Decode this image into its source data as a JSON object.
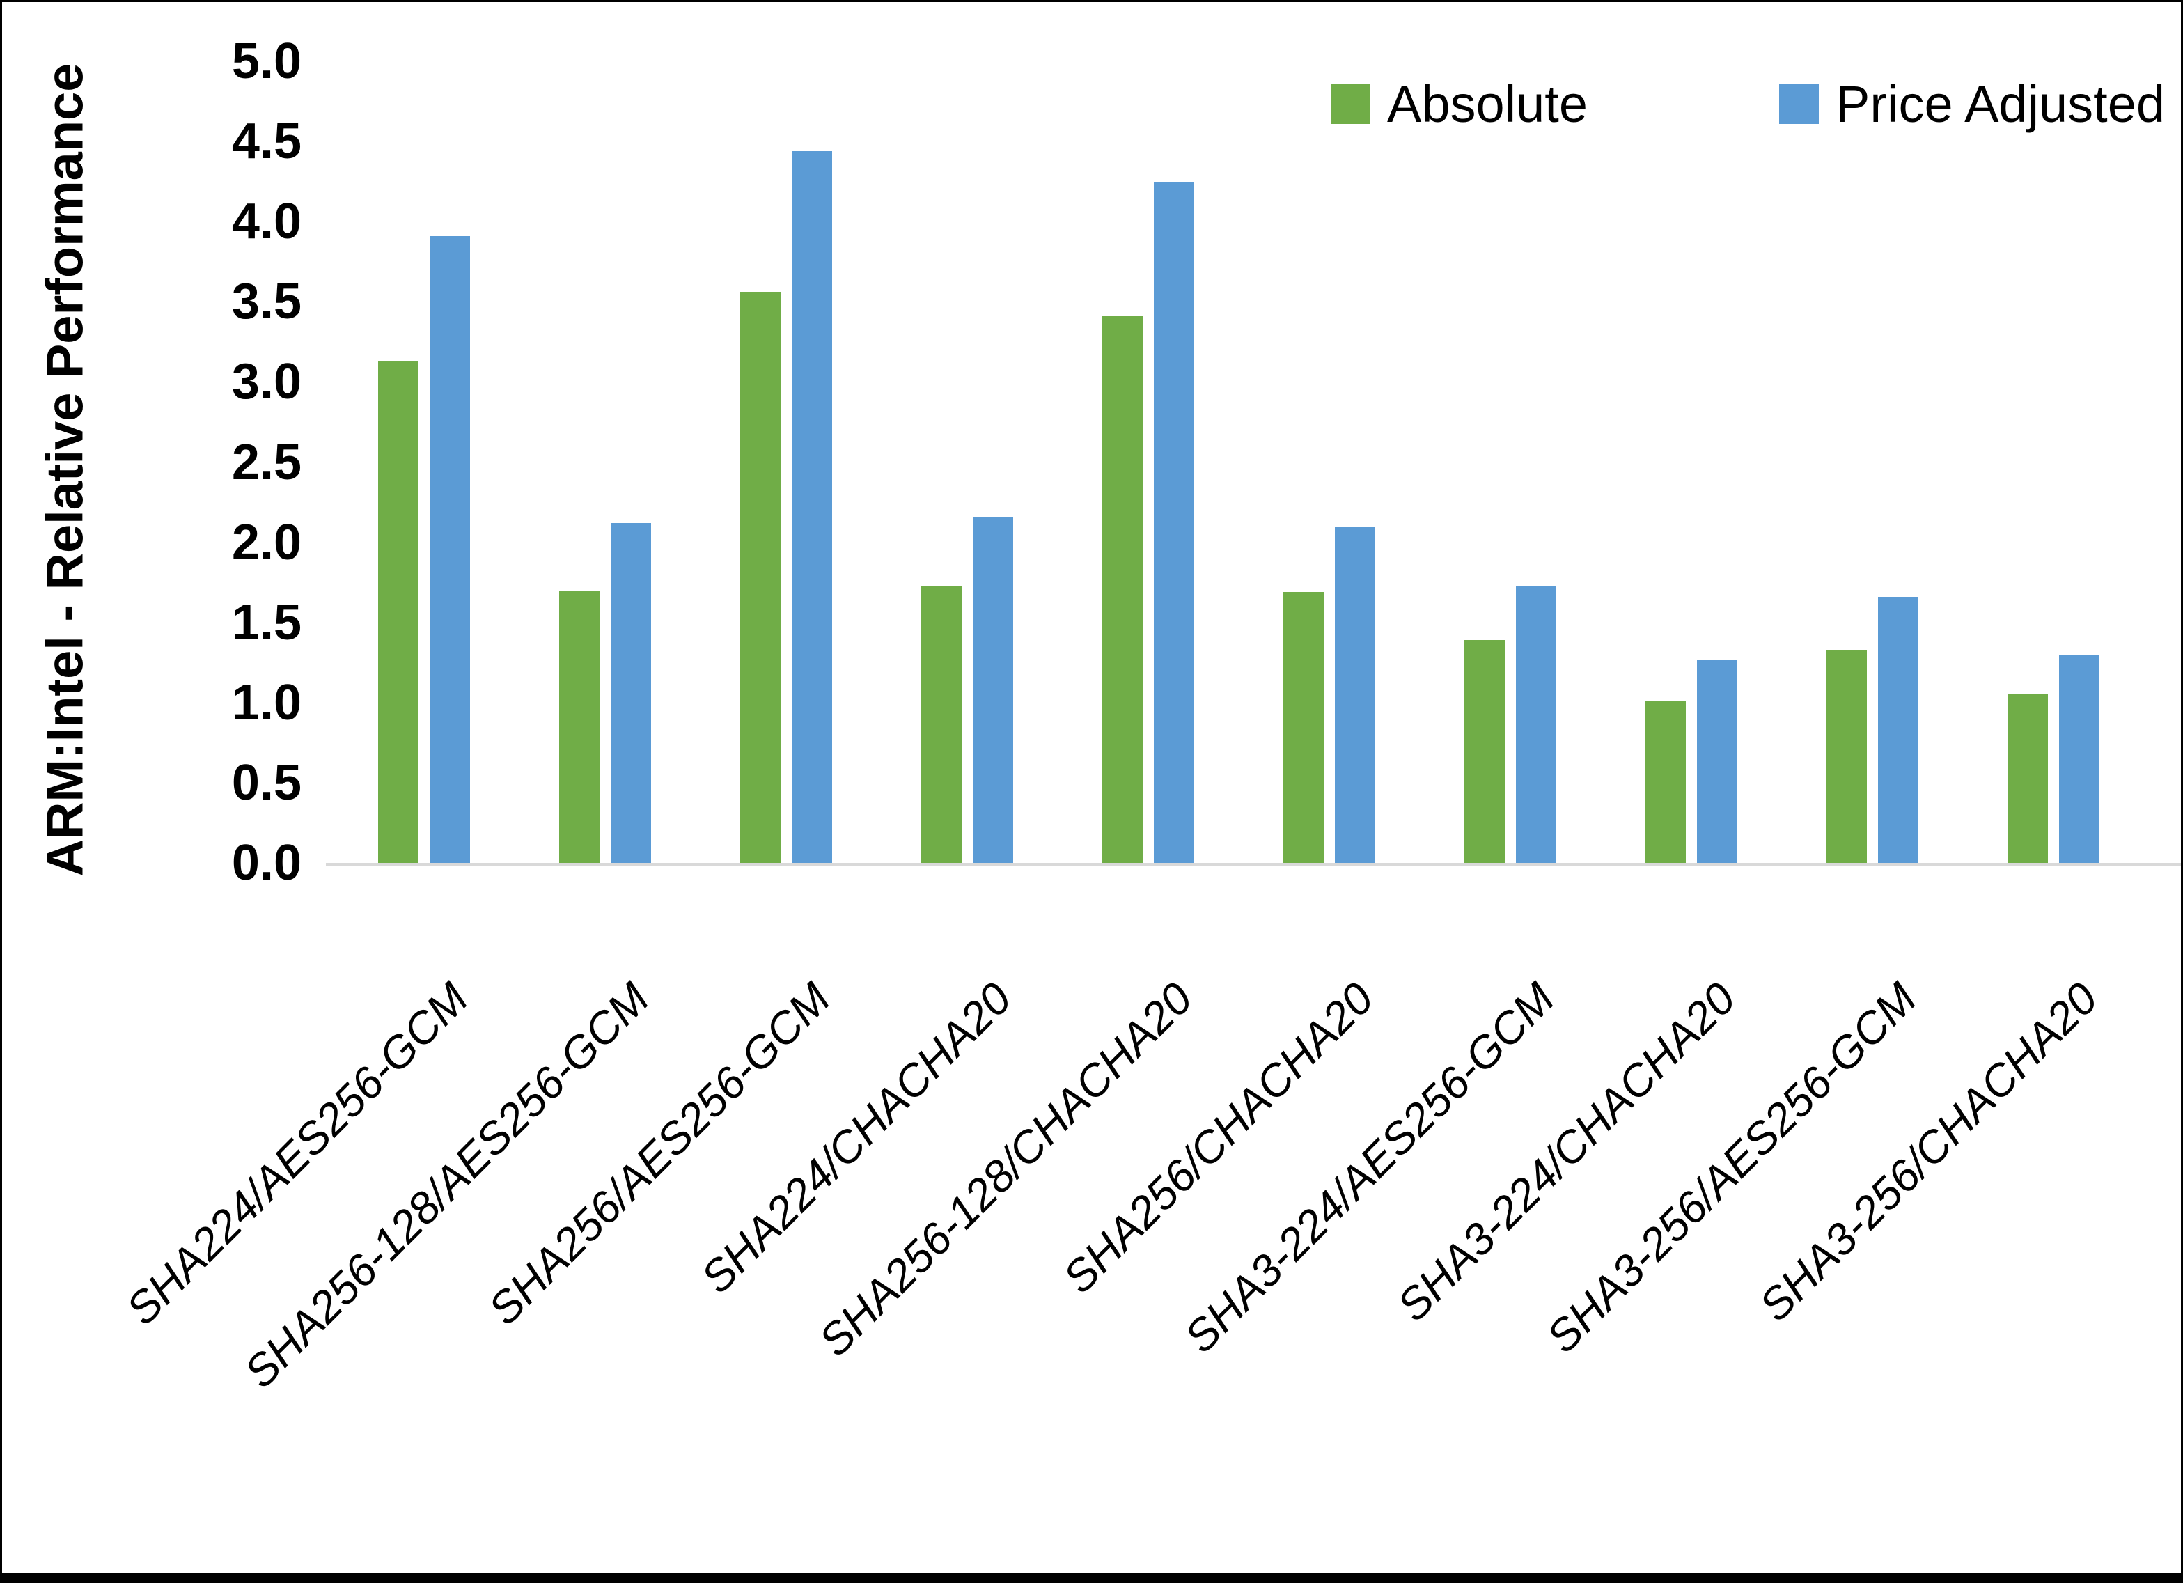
{
  "chart_data": {
    "type": "bar",
    "title": "",
    "xlabel": "",
    "ylabel": "ARM:Intel - Relative Performance",
    "ylim": [
      0.0,
      5.0
    ],
    "ytick_step": 0.5,
    "ytick_labels": [
      "5.0",
      "4.5",
      "4.0",
      "3.5",
      "3.0",
      "2.5",
      "2.0",
      "1.5",
      "1.0",
      "0.5",
      "0.0"
    ],
    "grid": "off",
    "legend_position": "top-right",
    "categories": [
      "SHA224/AES256-GCM",
      "SHA256-128/AES256-GCM",
      "SHA256/AES256-GCM",
      "SHA224/CHACHA20",
      "SHA256-128/CHACHA20",
      "SHA256/CHACHA20",
      "SHA3-224/AES256-GCM",
      "SHA3-224/CHACHA20",
      "SHA3-256/AES256-GCM",
      "SHA3-256/CHACHA20"
    ],
    "series": [
      {
        "name": "Absolute",
        "color": "#70AD47",
        "values": [
          3.13,
          1.7,
          3.56,
          1.73,
          3.41,
          1.69,
          1.39,
          1.01,
          1.33,
          1.05
        ]
      },
      {
        "name": "Price Adjusted",
        "color": "#5B9BD5",
        "values": [
          3.91,
          2.12,
          4.44,
          2.16,
          4.25,
          2.1,
          1.73,
          1.27,
          1.66,
          1.3
        ]
      }
    ]
  },
  "colors": {
    "background": "#FFFFFF",
    "axis_line": "#D9D9D9",
    "text": "#000000",
    "frame": "#000000"
  }
}
